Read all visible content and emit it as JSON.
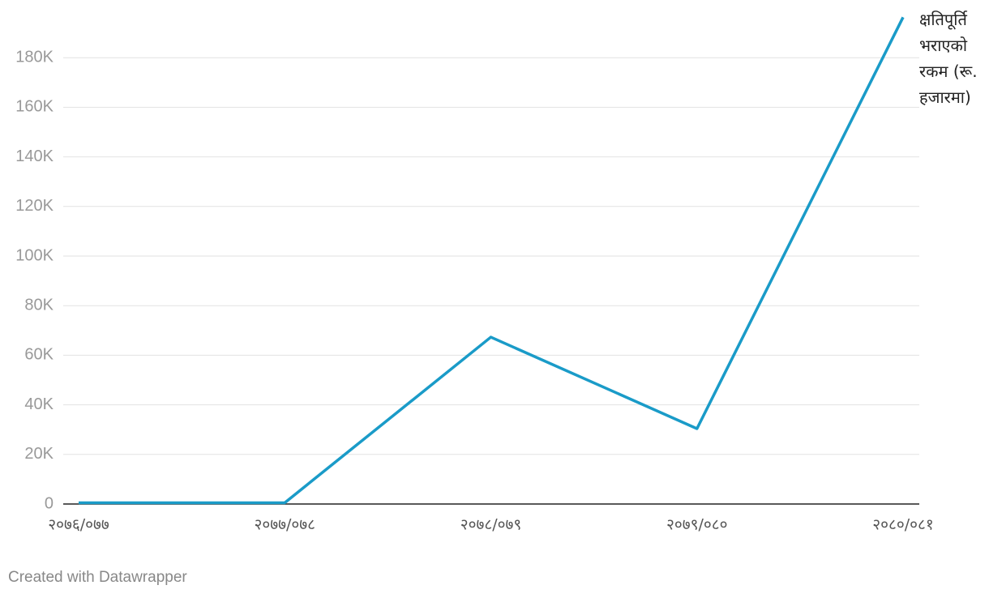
{
  "chart_data": {
    "type": "line",
    "categories": [
      "२०७६/०७७",
      "२०७७/०७८",
      "२०७८/०७९",
      "२०७९/०८०",
      "२०८०/०८१"
    ],
    "series": [
      {
        "name": "क्षतिपूर्ति भराएको रकम (रू. हजारमा)",
        "color": "#1a9bc8",
        "values": [
          500,
          500,
          67300,
          30400,
          196300
        ]
      }
    ],
    "ylim": [
      0,
      200000
    ],
    "yticks": [
      0,
      {
        "value": 20000,
        "label": "20K"
      },
      {
        "value": 40000,
        "label": "40K"
      },
      {
        "value": 60000,
        "label": "60K"
      },
      {
        "value": 80000,
        "label": "80K"
      },
      {
        "value": 100000,
        "label": "100K"
      },
      {
        "value": 120000,
        "label": "120K"
      },
      {
        "value": 140000,
        "label": "140K"
      },
      {
        "value": 160000,
        "label": "160K"
      },
      {
        "value": 180000,
        "label": "180K"
      }
    ],
    "grid": true,
    "footer": "Created with Datawrapper"
  }
}
